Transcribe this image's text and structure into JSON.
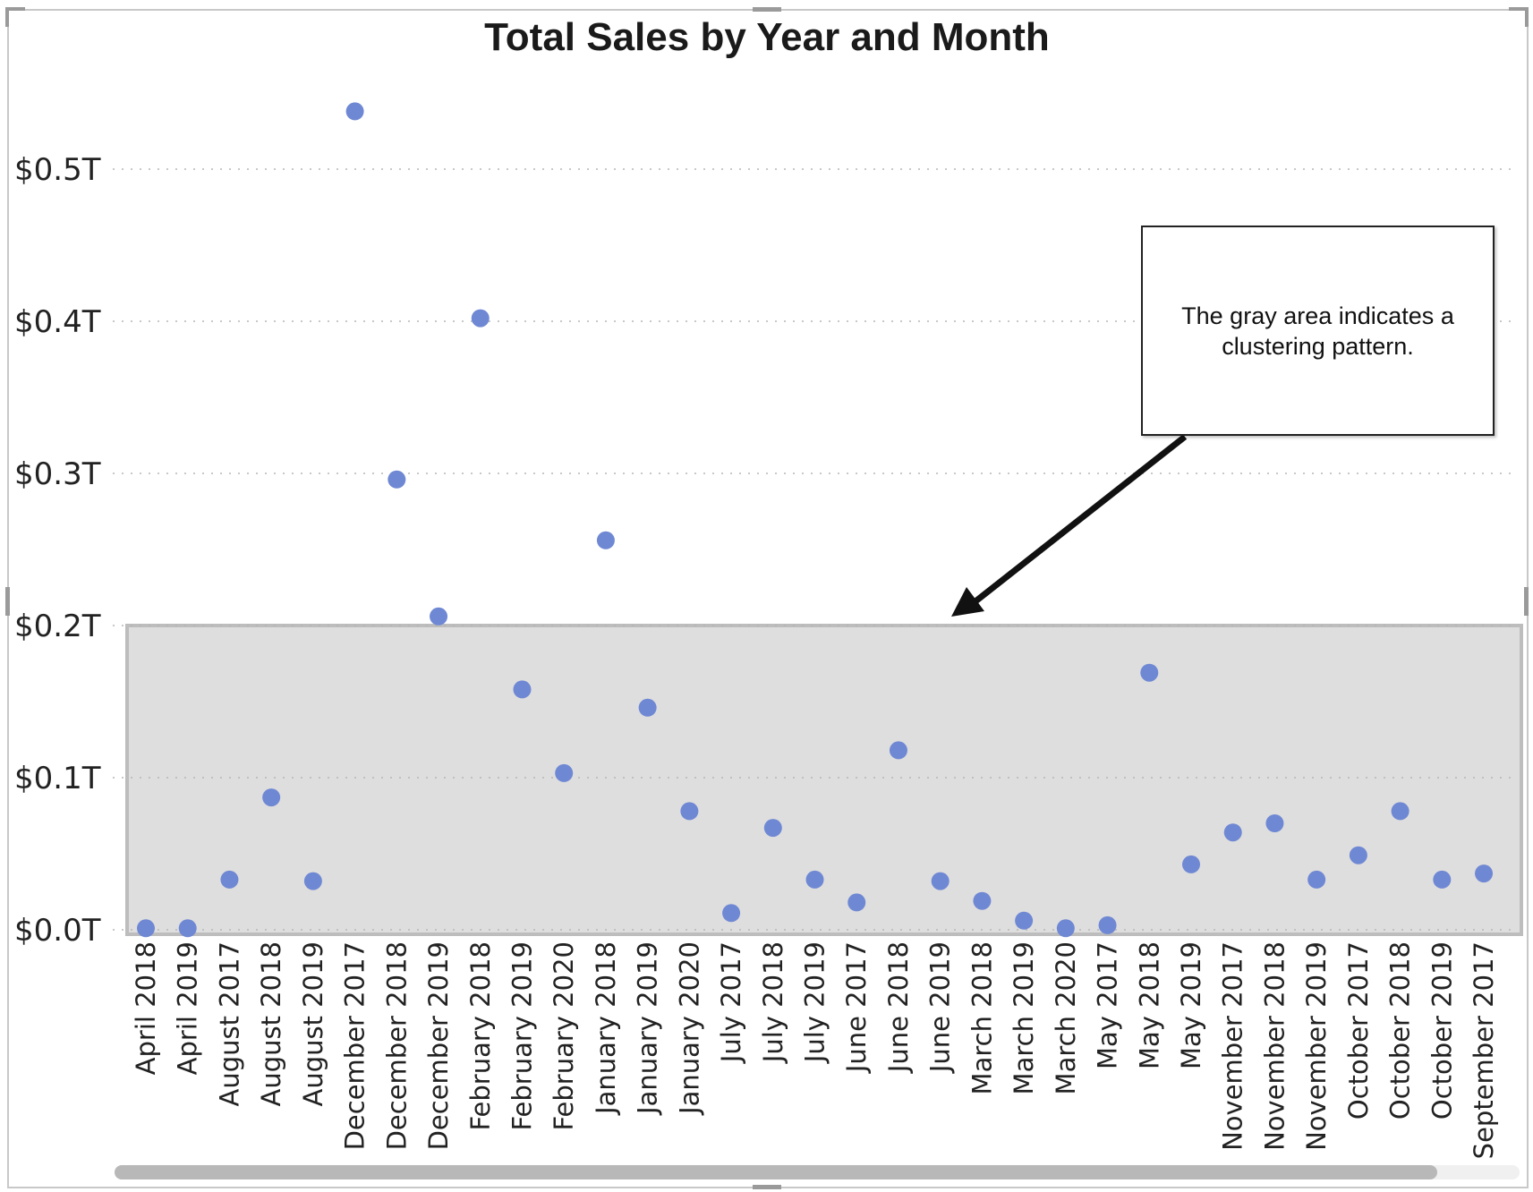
{
  "chart_data": {
    "type": "scatter",
    "title": "Total Sales by Year and Month",
    "xlabel": "",
    "ylabel": "",
    "categories": [
      "April 2018",
      "April 2019",
      "August 2017",
      "August 2018",
      "August 2019",
      "December 2017",
      "December 2018",
      "December 2019",
      "February 2018",
      "February 2019",
      "February 2020",
      "January 2018",
      "January 2019",
      "January 2020",
      "July 2017",
      "July 2018",
      "July 2019",
      "June 2017",
      "June 2018",
      "June 2019",
      "March 2018",
      "March 2019",
      "March 2020",
      "May 2017",
      "May 2018",
      "May 2019",
      "November 2017",
      "November 2018",
      "November 2019",
      "October 2017",
      "October 2018",
      "October 2019",
      "September 2017"
    ],
    "values": [
      0.001,
      0.001,
      0.033,
      0.087,
      0.032,
      0.538,
      0.296,
      0.206,
      0.402,
      0.158,
      0.103,
      0.256,
      0.146,
      0.078,
      0.011,
      0.067,
      0.033,
      0.018,
      0.118,
      0.032,
      0.019,
      0.006,
      0.001,
      0.003,
      0.169,
      0.043,
      0.064,
      0.07,
      0.033,
      0.049,
      0.078,
      0.033,
      0.037
    ],
    "ylim": [
      0,
      0.55
    ],
    "yticks": [
      "$0.0T",
      "$0.1T",
      "$0.2T",
      "$0.3T",
      "$0.4T",
      "$0.5T"
    ],
    "ytick_values": [
      0,
      0.1,
      0.2,
      0.3,
      0.4,
      0.5
    ],
    "grid": true,
    "point_color": "#6f88d4",
    "highlight": {
      "y_range": [
        0,
        0.2
      ],
      "color": "#dedede",
      "border": "#bdbdbd"
    },
    "annotation": {
      "text": "The gray area indicates a clustering pattern."
    }
  }
}
